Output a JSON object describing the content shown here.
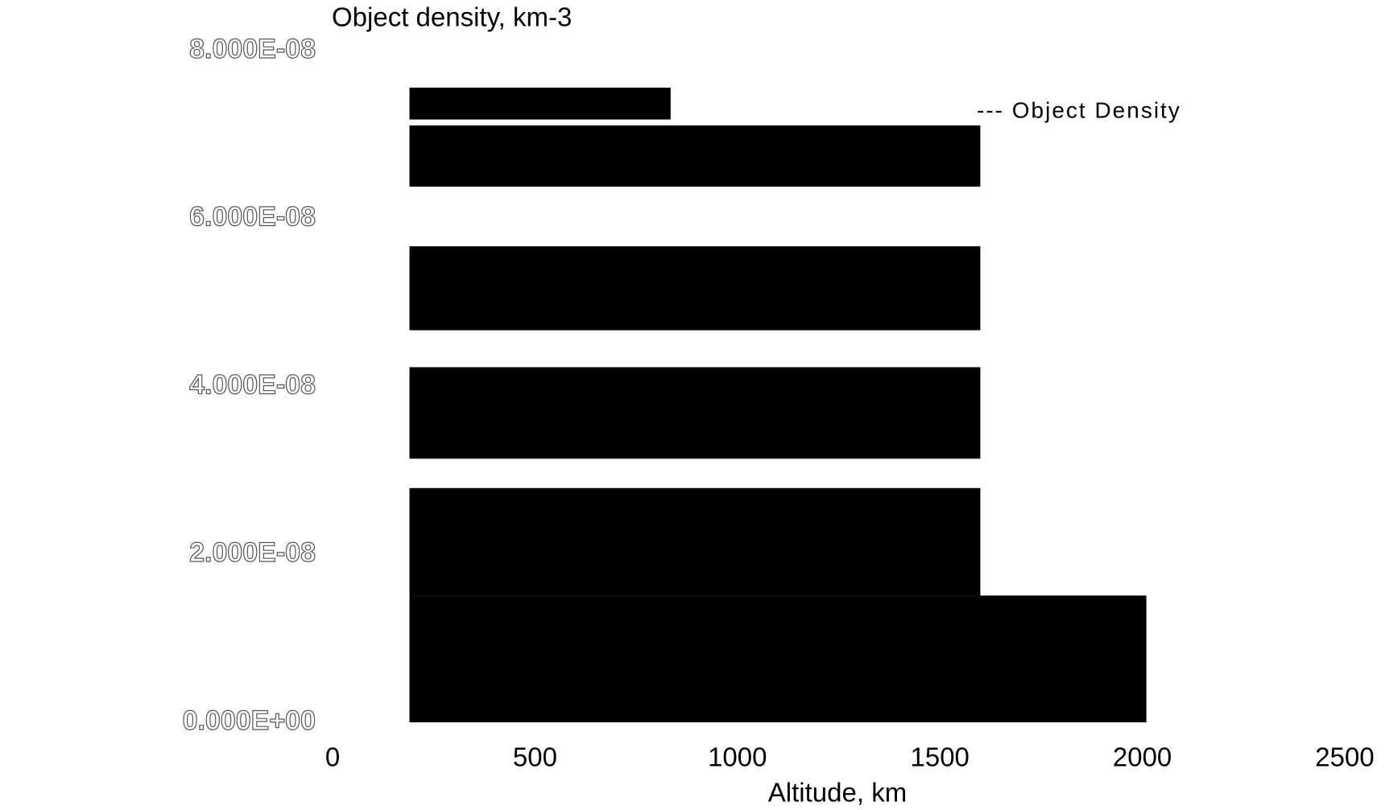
{
  "chart_data": {
    "type": "block",
    "title": "Object density, km-3",
    "x_label": "Altitude, km",
    "xlim": [
      0,
      2500
    ],
    "xticks": [
      0,
      500,
      1000,
      1500,
      2000,
      2500
    ],
    "ylim": [
      0,
      8e-08
    ],
    "yticks": [
      {
        "value": 0,
        "label": "0.000E+00"
      },
      {
        "value": 2e-08,
        "label": "2.000E-08"
      },
      {
        "value": 4e-08,
        "label": "4.000E-08"
      },
      {
        "value": 6e-08,
        "label": "6.000E-08"
      },
      {
        "value": 8e-08,
        "label": "8.000E-08"
      }
    ],
    "series": [
      {
        "name": "--- Object Density",
        "color": "#000000",
        "blocks": [
          {
            "x": [
              190,
              835
            ],
            "y": [
              7.18e-08,
              7.56e-08
            ]
          },
          {
            "x": [
              190,
              1600
            ],
            "y": [
              6.38e-08,
              7.11e-08
            ]
          },
          {
            "x": [
              190,
              1600
            ],
            "y": [
              4.67e-08,
              5.67e-08
            ]
          },
          {
            "x": [
              190,
              1600
            ],
            "y": [
              3.14e-08,
              4.23e-08
            ]
          },
          {
            "x": [
              190,
              1600
            ],
            "y": [
              1.51e-08,
              2.79e-08
            ]
          },
          {
            "x": [
              190,
              2010
            ],
            "y": [
              0,
              1.51e-08
            ]
          }
        ]
      }
    ],
    "legend": "upper-right"
  }
}
